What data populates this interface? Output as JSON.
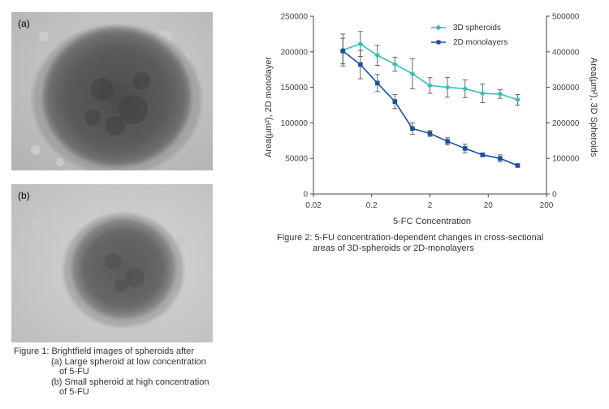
{
  "figure1": {
    "panel_a_label": "(a)",
    "panel_b_label": "(b)",
    "caption_line1": "Figure 1: Brightfield images of spheroids after",
    "caption_line2": "(a) Large spheroid at low concentration",
    "caption_line3": "of 5-FU",
    "caption_line4": "(b) Small spheroid at high concentration",
    "caption_line5": "of 5-FU"
  },
  "figure2": {
    "caption_line1": "Figure 2: 5-FU concentration-dependent changes in cross-sectional",
    "caption_line2": "areas of 3D-spheroids or 2D-monolayers"
  },
  "colors": {
    "spheroids_3d": "#3bbcb4",
    "monolayers_2d": "#1f4e9c",
    "axis": "#444444"
  },
  "chart_data": {
    "type": "line",
    "xlabel": "5-FC Concentration",
    "ylabel_left": "Area(µm²), 2D monolayer",
    "ylabel_right": "Area(µm²), 3D Spheroids",
    "xscale": "log",
    "xlim": [
      0.02,
      200
    ],
    "x_ticks": [
      "0.02",
      "0.2",
      "2",
      "20",
      "200"
    ],
    "ylim_left": [
      0,
      250000
    ],
    "y_ticks_left": [
      "0",
      "50000",
      "100000",
      "150000",
      "200000",
      "250000"
    ],
    "ylim_right": [
      0,
      500000
    ],
    "y_ticks_right": [
      "0",
      "100000",
      "200000",
      "300000",
      "400000",
      "500000"
    ],
    "legend_position": "top-right",
    "x": [
      0.064,
      0.128,
      0.25,
      0.5,
      1,
      2,
      4,
      8,
      16,
      32,
      64
    ],
    "series": [
      {
        "name": "3D spheroids",
        "axis": "right",
        "color": "#3bbcb4",
        "marker": "diamond",
        "values": [
          405000,
          422000,
          390000,
          365000,
          338000,
          305000,
          300000,
          296000,
          283000,
          281000,
          265000
        ],
        "errors": [
          45000,
          35000,
          28000,
          20000,
          42000,
          22000,
          28000,
          25000,
          26000,
          12000,
          15000
        ]
      },
      {
        "name": "2D monolayers",
        "axis": "left",
        "color": "#1f4e9c",
        "marker": "square",
        "values": [
          201000,
          182000,
          156000,
          130000,
          92000,
          85000,
          74000,
          64000,
          55000,
          50000,
          40000
        ],
        "errors": [
          18000,
          20000,
          12000,
          10000,
          8000,
          4000,
          5000,
          6000,
          2000,
          5000,
          2000
        ]
      }
    ]
  }
}
